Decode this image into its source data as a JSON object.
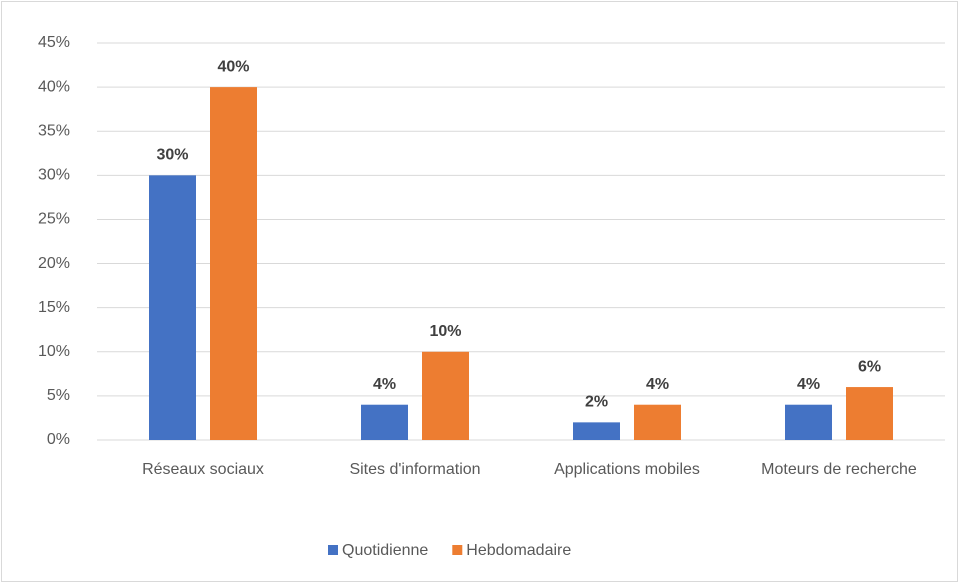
{
  "chart_data": {
    "type": "bar",
    "categories": [
      "Réseaux sociaux",
      "Sites d'information",
      "Applications mobiles",
      "Moteurs de recherche"
    ],
    "series": [
      {
        "name": "Quotidienne",
        "color": "#4472c4",
        "values": [
          30,
          4,
          2,
          4
        ],
        "value_labels": [
          "30%",
          "4%",
          "2%",
          "4%"
        ]
      },
      {
        "name": "Hebdomadaire",
        "color": "#ed7d31",
        "values": [
          40,
          10,
          4,
          6
        ],
        "value_labels": [
          "40%",
          "10%",
          "4%",
          "6%"
        ]
      }
    ],
    "ylim": [
      0,
      45
    ],
    "yticks": [
      {
        "value": 0,
        "label": "0%"
      },
      {
        "value": 5,
        "label": "5%"
      },
      {
        "value": 10,
        "label": "10%"
      },
      {
        "value": 15,
        "label": "15%"
      },
      {
        "value": 20,
        "label": "20%"
      },
      {
        "value": 25,
        "label": "25%"
      },
      {
        "value": 30,
        "label": "30%"
      },
      {
        "value": 35,
        "label": "35%"
      },
      {
        "value": 40,
        "label": "40%"
      },
      {
        "value": 45,
        "label": "45%"
      }
    ],
    "grid": true,
    "legend": "bottom"
  }
}
